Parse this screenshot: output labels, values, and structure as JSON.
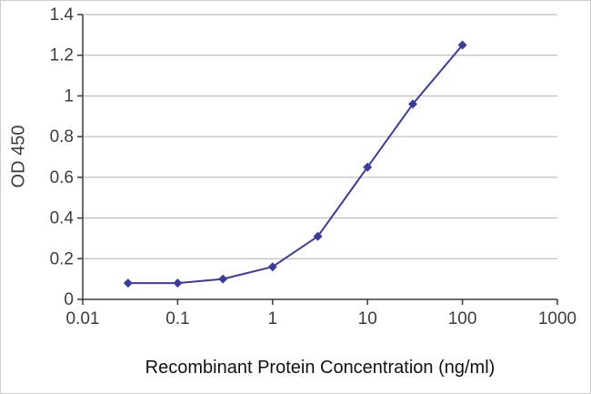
{
  "chart_data": {
    "type": "line",
    "title": "",
    "xlabel": "Recombinant Protein Concentration (ng/ml)",
    "ylabel": "OD 450",
    "x_scale": "log",
    "xlim": [
      0.01,
      1000
    ],
    "ylim": [
      0,
      1.4
    ],
    "x_ticks": [
      0.01,
      0.1,
      1,
      10,
      100,
      1000
    ],
    "x_tick_labels": [
      "0.01",
      "0.1",
      "1",
      "10",
      "100",
      "1000"
    ],
    "y_ticks": [
      0,
      0.2,
      0.4,
      0.6,
      0.8,
      1,
      1.2,
      1.4
    ],
    "y_tick_labels": [
      "0",
      "0.2",
      "0.4",
      "0.6",
      "0.8",
      "1",
      "1.2",
      "1.4"
    ],
    "grid": "horizontal",
    "legend": "none",
    "series": [
      {
        "name": "OD 450",
        "marker": "diamond",
        "color": "#3b3b9e",
        "x": [
          0.03,
          0.1,
          0.3,
          1,
          3,
          10,
          30,
          100
        ],
        "y": [
          0.08,
          0.08,
          0.1,
          0.16,
          0.31,
          0.65,
          0.96,
          1.25
        ]
      }
    ]
  },
  "colors": {
    "grid": "#b0b0b0",
    "axis": "#3a3a3a",
    "text": "#3c3c3c",
    "background": "#ffffff"
  }
}
